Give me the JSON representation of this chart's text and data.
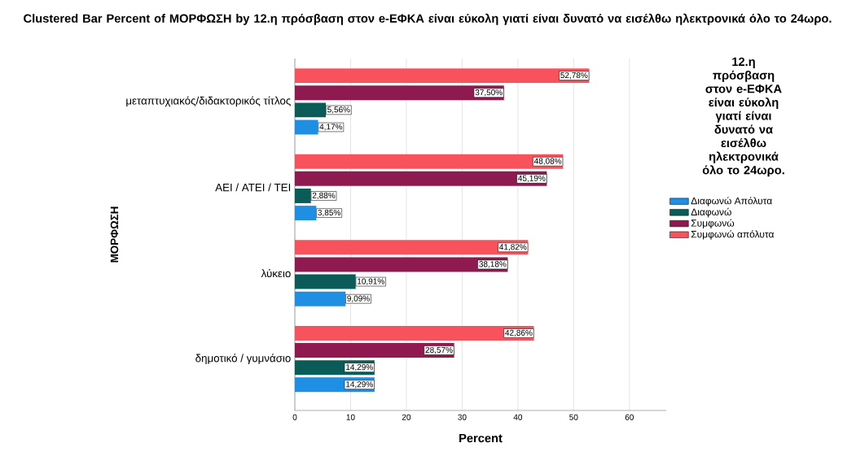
{
  "chart_data": {
    "type": "bar",
    "orientation": "horizontal",
    "title": "Clustered Bar Percent of ΜΟΡΦΩΣΗ by 12.η πρόσβαση στον e-ΕΦΚΑ είναι εύκολη γιατί είναι δυνατό να εισέλθω ηλεκτρονικά όλο το 24ωρο.",
    "xlabel": "Percent",
    "ylabel": "ΜΟΡΦΩΣΗ",
    "legend_title": "12.η πρόσβαση στον e-ΕΦΚΑ είναι εύκολη γιατί είναι δυνατό να εισέλθω ηλεκτρονικά όλο το 24ωρο.",
    "categories": [
      "μεταπτυχιακός/διδακτορικός τίτλος",
      "ΑΕΙ / ΑΤΕΙ / ΤΕΙ",
      "λύκειο",
      "δημοτικό / γυμνάσιο"
    ],
    "series": [
      {
        "name": "Διαφωνώ Απόλυτα",
        "color": "#1f8fe3",
        "values": [
          4.17,
          3.85,
          9.09,
          14.29
        ],
        "value_labels": [
          "4,17%",
          "3,85%",
          "9,09%",
          "14,29%"
        ]
      },
      {
        "name": "Διαφωνώ",
        "color": "#0b5c58",
        "values": [
          5.56,
          2.88,
          10.91,
          14.29
        ],
        "value_labels": [
          "5,56%",
          "2,88%",
          "10,91%",
          "14,29%"
        ]
      },
      {
        "name": "Συμφωνώ",
        "color": "#8f1a50",
        "values": [
          37.5,
          45.19,
          38.18,
          28.57
        ],
        "value_labels": [
          "37,50%",
          "45,19%",
          "38,18%",
          "28,57%"
        ]
      },
      {
        "name": "Συμφωνώ απόλυτα",
        "color": "#f8525c",
        "values": [
          52.78,
          48.08,
          41.82,
          42.86
        ],
        "value_labels": [
          "52,78%",
          "48,08%",
          "41,82%",
          "42,86%"
        ]
      }
    ],
    "xlim": [
      0,
      66.6
    ],
    "xticks": [
      0,
      10,
      20,
      30,
      40,
      50,
      60
    ],
    "grid": "x",
    "legend": "right"
  }
}
